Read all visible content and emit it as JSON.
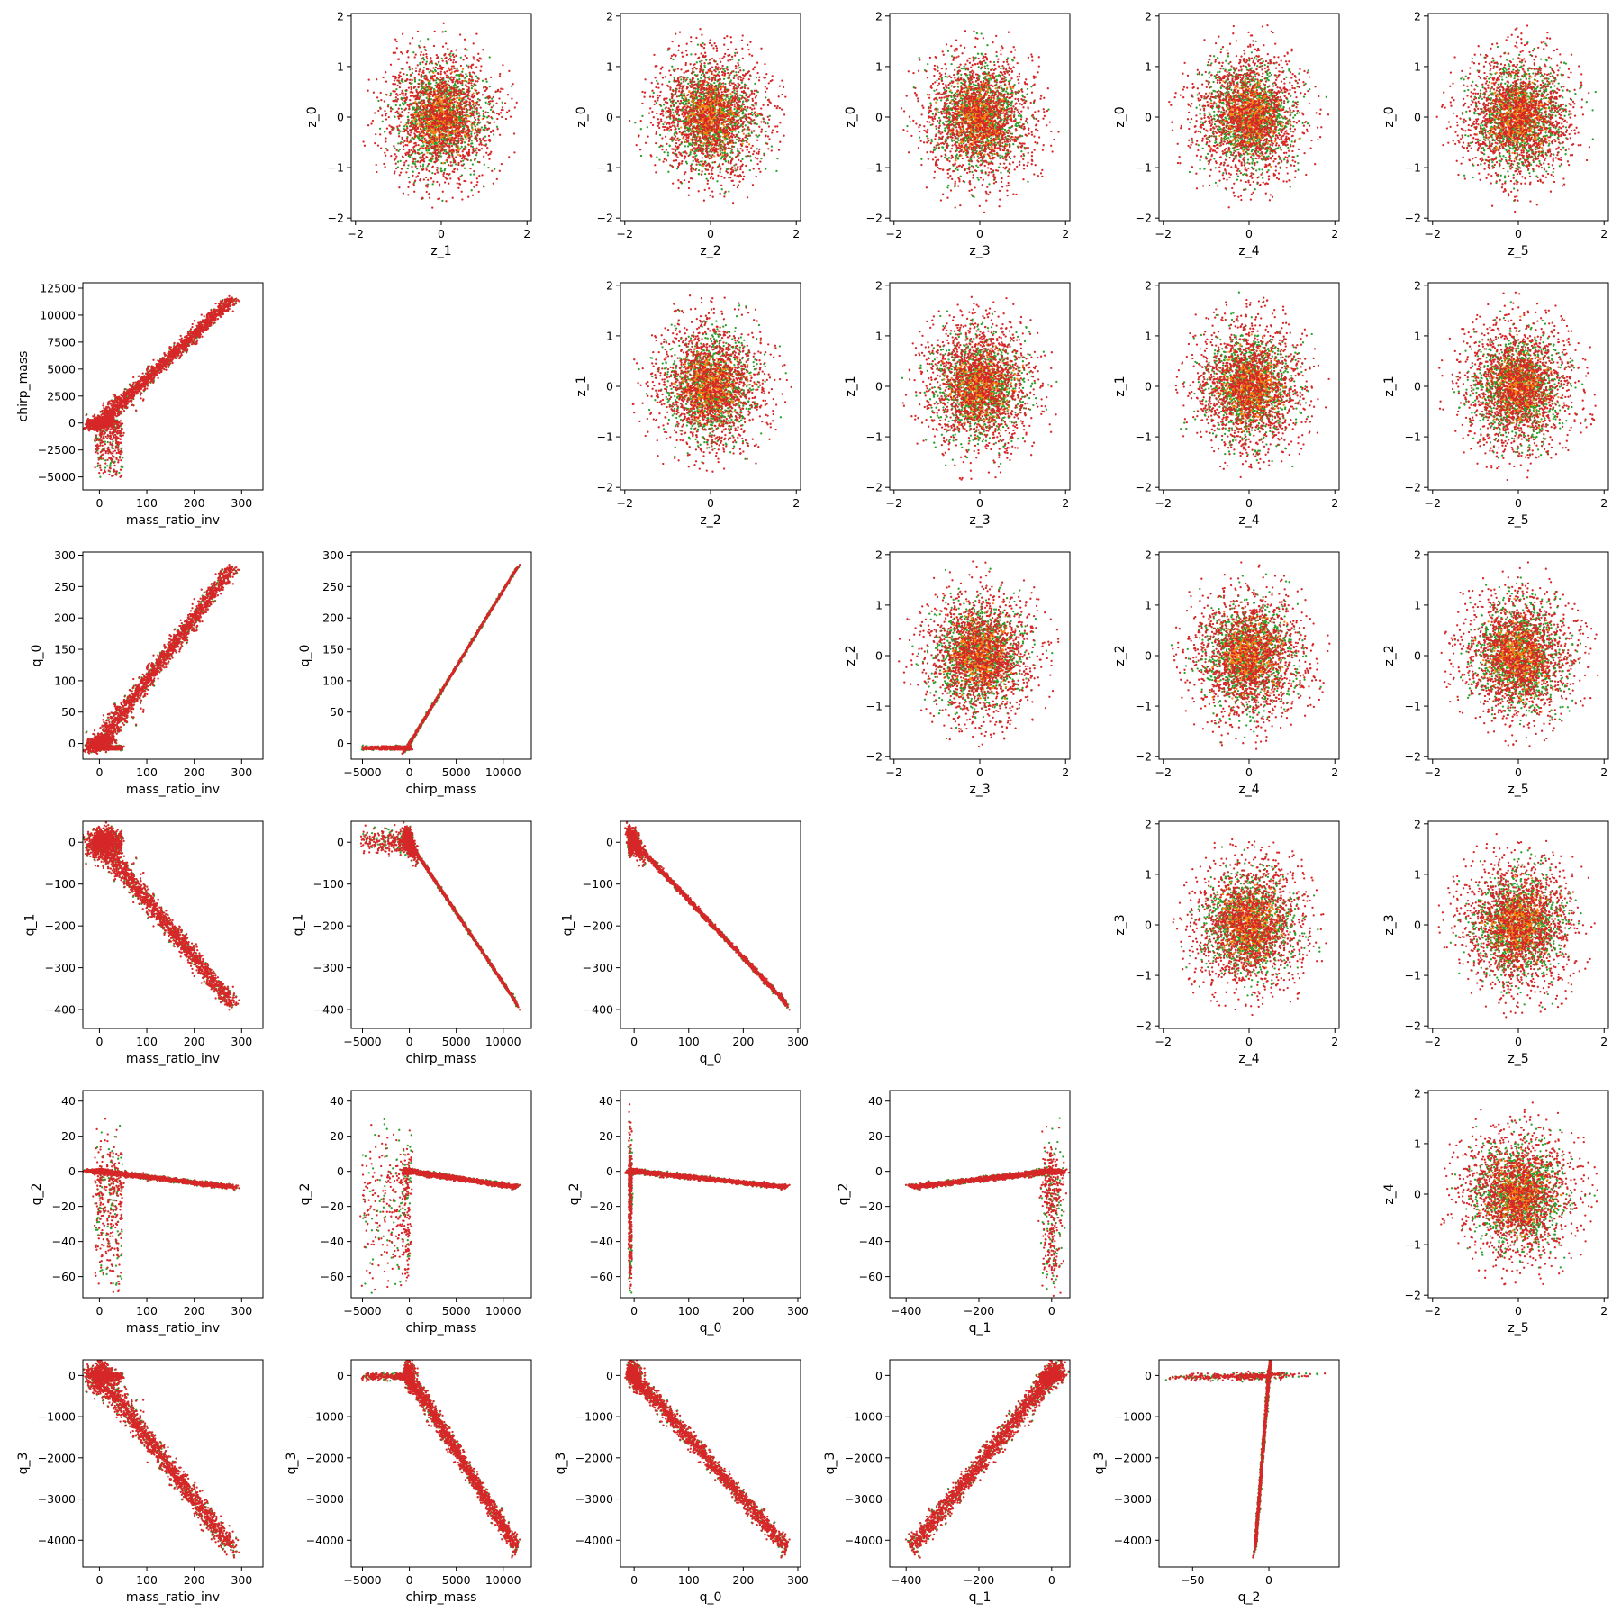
{
  "chart_data": {
    "type": "scatter",
    "title": "",
    "legend": "none",
    "grid": false,
    "colors": {
      "series_a": "#2ca02c",
      "series_b": "#ff7f0e",
      "series_c": "#d62728"
    },
    "variables": [
      {
        "name": "mass_ratio_inv",
        "lim": [
          -35,
          345
        ],
        "ticks": [
          0,
          100,
          200,
          300
        ],
        "tick_labels": [
          "0",
          "100",
          "200",
          "300"
        ]
      },
      {
        "name": "chirp_mass",
        "lim": [
          -6200,
          13000
        ],
        "ticks": [
          -5000,
          0,
          5000,
          10000
        ],
        "tick_labels": [
          "−5000",
          "0",
          "5000",
          "10000"
        ]
      },
      {
        "name": "q_0",
        "lim": [
          -25,
          305
        ],
        "ticks": [
          0,
          100,
          200,
          300
        ],
        "tick_labels": [
          "0",
          "100",
          "200",
          "300"
        ]
      },
      {
        "name": "q_1",
        "lim": [
          -445,
          50
        ],
        "ticks": [
          -400,
          -200,
          0
        ],
        "tick_labels": [
          "−400",
          "−200",
          "0"
        ]
      },
      {
        "name": "q_2",
        "lim": [
          -72,
          46
        ],
        "ticks": [
          -50,
          0
        ],
        "tick_labels": [
          "−50",
          "0"
        ]
      },
      {
        "name": "q_3",
        "lim": [
          -4650,
          380
        ],
        "ticks": [
          -4000,
          -3000,
          -2000,
          -1000,
          0
        ],
        "tick_labels": [
          "−4000",
          "−3000",
          "−2000",
          "−1000",
          "0"
        ]
      },
      {
        "name": "chirp_mass",
        "lim": [
          -6200,
          13000
        ],
        "ticks": [
          -5000,
          -2500,
          0,
          2500,
          5000,
          7500,
          10000,
          12500
        ],
        "tick_labels": [
          "−5000",
          "−2500",
          "0",
          "2500",
          "5000",
          "7500",
          "10000",
          "12500"
        ]
      },
      {
        "name": "q_0",
        "lim": [
          -25,
          305
        ],
        "ticks": [
          0,
          50,
          100,
          150,
          200,
          250,
          300
        ],
        "tick_labels": [
          "0",
          "50",
          "100",
          "150",
          "200",
          "250",
          "300"
        ]
      },
      {
        "name": "q_1",
        "lim": [
          -445,
          50
        ],
        "ticks": [
          -400,
          -300,
          -200,
          -100,
          0
        ],
        "tick_labels": [
          "−400",
          "−300",
          "−200",
          "−100",
          "0"
        ]
      },
      {
        "name": "q_2",
        "lim": [
          -72,
          46
        ],
        "ticks": [
          -60,
          -40,
          -20,
          0,
          20,
          40
        ],
        "tick_labels": [
          "−60",
          "−40",
          "−20",
          "0",
          "20",
          "40"
        ]
      }
    ],
    "z_variables": {
      "x_lim": [
        -2.1,
        2.1
      ],
      "y_lim": [
        -2.05,
        2.05
      ],
      "x_ticks": [
        -2,
        0,
        2
      ],
      "x_tick_labels": [
        "−2",
        "0",
        "2"
      ],
      "y_ticks": [
        -2,
        -1,
        0,
        1,
        2
      ],
      "y_tick_labels": [
        "−2",
        "−1",
        "0",
        "1",
        "2"
      ]
    },
    "panels": [
      {
        "row": 0,
        "col": 1,
        "kind": "gauss",
        "xlabel": "z_1",
        "ylabel": "z_0"
      },
      {
        "row": 0,
        "col": 2,
        "kind": "gauss",
        "xlabel": "z_2",
        "ylabel": "z_0"
      },
      {
        "row": 0,
        "col": 3,
        "kind": "gauss",
        "xlabel": "z_3",
        "ylabel": "z_0"
      },
      {
        "row": 0,
        "col": 4,
        "kind": "gauss",
        "xlabel": "z_4",
        "ylabel": "z_0"
      },
      {
        "row": 0,
        "col": 5,
        "kind": "gauss",
        "xlabel": "z_5",
        "ylabel": "z_0"
      },
      {
        "row": 1,
        "col": 0,
        "kind": "relation",
        "x": 0,
        "y": 6,
        "xlabel": "mass_ratio_inv",
        "ylabel": "chirp_mass"
      },
      {
        "row": 1,
        "col": 2,
        "kind": "gauss",
        "xlabel": "z_2",
        "ylabel": "z_1"
      },
      {
        "row": 1,
        "col": 3,
        "kind": "gauss",
        "xlabel": "z_3",
        "ylabel": "z_1"
      },
      {
        "row": 1,
        "col": 4,
        "kind": "gauss",
        "xlabel": "z_4",
        "ylabel": "z_1"
      },
      {
        "row": 1,
        "col": 5,
        "kind": "gauss",
        "xlabel": "z_5",
        "ylabel": "z_1"
      },
      {
        "row": 2,
        "col": 0,
        "kind": "relation",
        "x": 0,
        "y": 7,
        "xlabel": "mass_ratio_inv",
        "ylabel": "q_0"
      },
      {
        "row": 2,
        "col": 1,
        "kind": "relation",
        "x": 1,
        "y": 7,
        "xlabel": "chirp_mass",
        "ylabel": "q_0"
      },
      {
        "row": 2,
        "col": 3,
        "kind": "gauss",
        "xlabel": "z_3",
        "ylabel": "z_2"
      },
      {
        "row": 2,
        "col": 4,
        "kind": "gauss",
        "xlabel": "z_4",
        "ylabel": "z_2"
      },
      {
        "row": 2,
        "col": 5,
        "kind": "gauss",
        "xlabel": "z_5",
        "ylabel": "z_2"
      },
      {
        "row": 3,
        "col": 0,
        "kind": "relation",
        "x": 0,
        "y": 8,
        "xlabel": "mass_ratio_inv",
        "ylabel": "q_1"
      },
      {
        "row": 3,
        "col": 1,
        "kind": "relation",
        "x": 1,
        "y": 8,
        "xlabel": "chirp_mass",
        "ylabel": "q_1"
      },
      {
        "row": 3,
        "col": 2,
        "kind": "relation",
        "x": 2,
        "y": 8,
        "xlabel": "q_0",
        "ylabel": "q_1"
      },
      {
        "row": 3,
        "col": 4,
        "kind": "gauss",
        "xlabel": "z_4",
        "ylabel": "z_3"
      },
      {
        "row": 3,
        "col": 5,
        "kind": "gauss",
        "xlabel": "z_5",
        "ylabel": "z_3"
      },
      {
        "row": 4,
        "col": 0,
        "kind": "relation",
        "x": 0,
        "y": 9,
        "xlabel": "mass_ratio_inv",
        "ylabel": "q_2"
      },
      {
        "row": 4,
        "col": 1,
        "kind": "relation",
        "x": 1,
        "y": 9,
        "xlabel": "chirp_mass",
        "ylabel": "q_2"
      },
      {
        "row": 4,
        "col": 2,
        "kind": "relation",
        "x": 2,
        "y": 9,
        "xlabel": "q_0",
        "ylabel": "q_2"
      },
      {
        "row": 4,
        "col": 3,
        "kind": "relation",
        "x": 3,
        "y": 9,
        "xlabel": "q_1",
        "ylabel": "q_2"
      },
      {
        "row": 4,
        "col": 5,
        "kind": "gauss",
        "xlabel": "z_5",
        "ylabel": "z_4"
      },
      {
        "row": 5,
        "col": 0,
        "kind": "relation",
        "x": 0,
        "y": 5,
        "xlabel": "mass_ratio_inv",
        "ylabel": "q_3"
      },
      {
        "row": 5,
        "col": 1,
        "kind": "relation",
        "x": 1,
        "y": 5,
        "xlabel": "chirp_mass",
        "ylabel": "q_3"
      },
      {
        "row": 5,
        "col": 2,
        "kind": "relation",
        "x": 2,
        "y": 5,
        "xlabel": "q_0",
        "ylabel": "q_3"
      },
      {
        "row": 5,
        "col": 3,
        "kind": "relation",
        "x": 3,
        "y": 5,
        "xlabel": "q_1",
        "ylabel": "q_3"
      },
      {
        "row": 5,
        "col": 4,
        "kind": "relation",
        "x": 4,
        "y": 5,
        "xlabel": "q_2",
        "ylabel": "q_3"
      }
    ]
  }
}
